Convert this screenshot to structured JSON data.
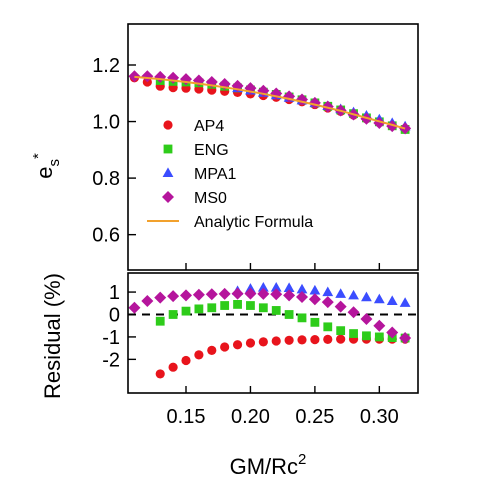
{
  "chart_data": [
    {
      "type": "scatter",
      "panel": "top",
      "ylabel": "e",
      "ylabel_sub": "s",
      "ylabel_sup": "*",
      "xlim": [
        0.105,
        0.33
      ],
      "ylim": [
        0.475,
        1.345
      ],
      "yticks": [
        0.6,
        0.8,
        1.0,
        1.2
      ],
      "ytick_labels": [
        "0.6",
        "0.8",
        "1.0",
        "1.2"
      ],
      "legend": {
        "placement": "left"
      },
      "series": [
        {
          "name": "AP4",
          "marker": "circle",
          "color": "#e8141c",
          "x": [
            0.11,
            0.12,
            0.13,
            0.14,
            0.15,
            0.16,
            0.17,
            0.18,
            0.19,
            0.2,
            0.21,
            0.22,
            0.23,
            0.24,
            0.25,
            0.26,
            0.27,
            0.28,
            0.29,
            0.3,
            0.31,
            0.32
          ],
          "y": [
            1.155,
            1.14,
            1.125,
            1.12,
            1.118,
            1.115,
            1.111,
            1.107,
            1.103,
            1.098,
            1.092,
            1.086,
            1.078,
            1.07,
            1.06,
            1.048,
            1.036,
            1.023,
            1.01,
            0.997,
            0.985,
            0.975
          ]
        },
        {
          "name": "ENG",
          "marker": "square",
          "color": "#2ecc1a",
          "x": [
            0.13,
            0.14,
            0.15,
            0.16,
            0.17,
            0.18,
            0.19,
            0.2,
            0.21,
            0.22,
            0.23,
            0.24,
            0.25,
            0.26,
            0.27,
            0.28,
            0.29,
            0.3,
            0.31,
            0.32
          ],
          "y": [
            1.145,
            1.142,
            1.14,
            1.137,
            1.132,
            1.125,
            1.119,
            1.112,
            1.104,
            1.096,
            1.087,
            1.077,
            1.066,
            1.054,
            1.041,
            1.028,
            1.013,
            0.999,
            0.985,
            0.972
          ]
        },
        {
          "name": "MPA1",
          "marker": "triangle",
          "color": "#3b4dff",
          "x": [
            0.19,
            0.2,
            0.21,
            0.22,
            0.23,
            0.24,
            0.25,
            0.26,
            0.27,
            0.28,
            0.29,
            0.3,
            0.31,
            0.32
          ],
          "y": [
            1.118,
            1.11,
            1.102,
            1.093,
            1.084,
            1.075,
            1.065,
            1.055,
            1.044,
            1.033,
            1.021,
            1.008,
            0.995,
            0.983
          ]
        },
        {
          "name": "MS0",
          "marker": "diamond",
          "color": "#b5159c",
          "x": [
            0.11,
            0.12,
            0.13,
            0.14,
            0.15,
            0.16,
            0.17,
            0.18,
            0.19,
            0.2,
            0.21,
            0.22,
            0.23,
            0.24,
            0.25,
            0.26,
            0.27,
            0.28,
            0.29,
            0.3,
            0.31,
            0.32
          ],
          "y": [
            1.16,
            1.16,
            1.158,
            1.155,
            1.15,
            1.145,
            1.14,
            1.133,
            1.126,
            1.118,
            1.109,
            1.099,
            1.089,
            1.078,
            1.066,
            1.053,
            1.039,
            1.025,
            1.01,
            0.995,
            0.984,
            0.976
          ]
        },
        {
          "name": "Analytic Formula",
          "type": "line",
          "color": "#f2a12d",
          "x": [
            0.11,
            0.13,
            0.15,
            0.17,
            0.19,
            0.21,
            0.23,
            0.25,
            0.27,
            0.29,
            0.31,
            0.32
          ],
          "y": [
            1.158,
            1.15,
            1.14,
            1.128,
            1.114,
            1.098,
            1.08,
            1.06,
            1.038,
            1.013,
            0.988,
            0.975
          ]
        }
      ]
    },
    {
      "type": "scatter",
      "panel": "bottom",
      "xlabel": "GM/Rc",
      "xlabel_sup": "2",
      "ylabel": "Residual (%)",
      "xlim": [
        0.105,
        0.33
      ],
      "ylim": [
        -3.5,
        1.85
      ],
      "xticks": [
        0.15,
        0.2,
        0.25,
        0.3
      ],
      "xtick_labels": [
        "0.15",
        "0.20",
        "0.25",
        "0.30"
      ],
      "yticks": [
        -2,
        -1,
        0,
        1
      ],
      "ytick_labels": [
        "-2",
        "-1",
        "0",
        "1"
      ],
      "zero_line": "dashed",
      "series": [
        {
          "name": "AP4",
          "marker": "circle",
          "color": "#e8141c",
          "x": [
            0.13,
            0.14,
            0.15,
            0.16,
            0.17,
            0.18,
            0.19,
            0.2,
            0.21,
            0.22,
            0.23,
            0.24,
            0.25,
            0.26,
            0.27,
            0.28,
            0.29,
            0.3,
            0.31,
            0.32
          ],
          "y": [
            -2.65,
            -2.35,
            -2.05,
            -1.8,
            -1.6,
            -1.45,
            -1.35,
            -1.27,
            -1.22,
            -1.18,
            -1.15,
            -1.13,
            -1.12,
            -1.11,
            -1.1,
            -1.1,
            -1.1,
            -1.1,
            -1.1,
            -1.1
          ]
        },
        {
          "name": "ENG",
          "marker": "square",
          "color": "#2ecc1a",
          "x": [
            0.13,
            0.14,
            0.15,
            0.16,
            0.17,
            0.18,
            0.19,
            0.2,
            0.21,
            0.22,
            0.23,
            0.24,
            0.25,
            0.26,
            0.27,
            0.28,
            0.29,
            0.3,
            0.31,
            0.32
          ],
          "y": [
            -0.3,
            0.0,
            0.15,
            0.25,
            0.3,
            0.4,
            0.45,
            0.4,
            0.3,
            0.18,
            0.0,
            -0.15,
            -0.35,
            -0.55,
            -0.72,
            -0.85,
            -0.95,
            -1.0,
            -1.03,
            -1.05
          ]
        },
        {
          "name": "MPA1",
          "marker": "triangle",
          "color": "#3b4dff",
          "x": [
            0.19,
            0.2,
            0.21,
            0.22,
            0.23,
            0.24,
            0.25,
            0.26,
            0.27,
            0.28,
            0.29,
            0.3,
            0.31,
            0.32
          ],
          "y": [
            1.05,
            1.15,
            1.2,
            1.2,
            1.18,
            1.12,
            1.07,
            1.0,
            0.92,
            0.85,
            0.77,
            0.68,
            0.6,
            0.52
          ]
        },
        {
          "name": "MS0",
          "marker": "diamond",
          "color": "#b5159c",
          "x": [
            0.11,
            0.12,
            0.13,
            0.14,
            0.15,
            0.16,
            0.17,
            0.18,
            0.19,
            0.2,
            0.21,
            0.22,
            0.23,
            0.24,
            0.25,
            0.26,
            0.27,
            0.28,
            0.29,
            0.3,
            0.31,
            0.32
          ],
          "y": [
            0.3,
            0.6,
            0.75,
            0.82,
            0.85,
            0.88,
            0.9,
            0.92,
            0.93,
            0.93,
            0.92,
            0.9,
            0.85,
            0.78,
            0.68,
            0.55,
            0.35,
            0.1,
            -0.2,
            -0.5,
            -0.8,
            -1.05
          ]
        }
      ]
    }
  ]
}
